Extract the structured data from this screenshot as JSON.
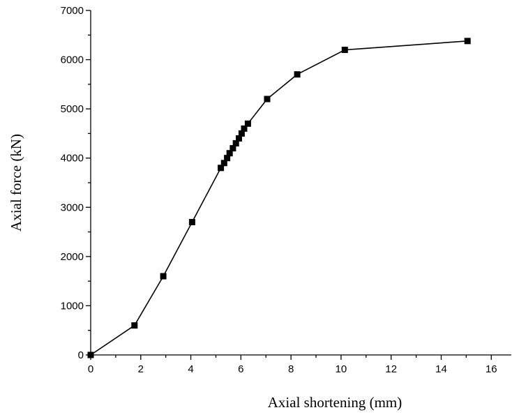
{
  "chart_data": {
    "type": "line",
    "title": "",
    "xlabel": "Axial shortening (mm)",
    "ylabel": "Axial force (kN)",
    "xlim": [
      0,
      16.8
    ],
    "ylim": [
      0,
      7000
    ],
    "x_ticks": [
      0,
      2,
      4,
      6,
      8,
      10,
      12,
      14,
      16
    ],
    "y_ticks": [
      0,
      1000,
      2000,
      3000,
      4000,
      5000,
      6000,
      7000
    ],
    "x_tick_labels": [
      "0",
      "2",
      "4",
      "6",
      "8",
      "10",
      "12",
      "14",
      "16"
    ],
    "y_tick_labels": [
      "0",
      "1000",
      "2000",
      "3000",
      "4000",
      "5000",
      "6000",
      "7000"
    ],
    "grid": false,
    "legend": "none",
    "marker": "square",
    "color": "#000000",
    "series": [
      {
        "x": [
          0.0,
          1.75,
          2.9,
          4.05,
          5.2,
          5.33,
          5.45,
          5.55,
          5.68,
          5.8,
          5.92,
          6.03,
          6.13,
          6.28,
          7.05,
          8.25,
          10.15,
          15.05
        ],
        "y": [
          0,
          600,
          1600,
          2700,
          3800,
          3900,
          4000,
          4100,
          4200,
          4300,
          4400,
          4500,
          4600,
          4700,
          5200,
          5700,
          6200,
          6380
        ]
      }
    ]
  }
}
